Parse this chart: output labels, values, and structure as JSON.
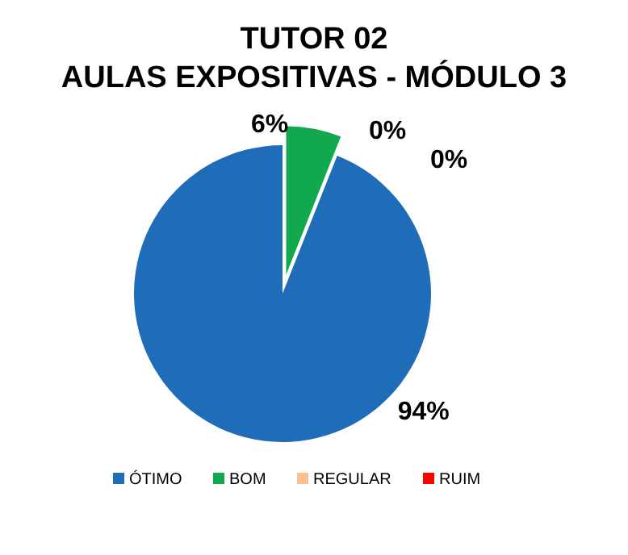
{
  "chart_data": {
    "type": "pie",
    "title": "TUTOR 02\nAULAS EXPOSITIVAS - MÓDULO 3",
    "categories": [
      "ÓTIMO",
      "BOM",
      "REGULAR",
      "RUIM"
    ],
    "values": [
      94,
      6,
      0,
      0
    ],
    "colors": [
      "#1f6cb8",
      "#12a84e",
      "#fac090",
      "#ff0000"
    ],
    "value_labels": [
      "94%",
      "6%",
      "0%",
      "0%"
    ],
    "legend": "bottom"
  }
}
